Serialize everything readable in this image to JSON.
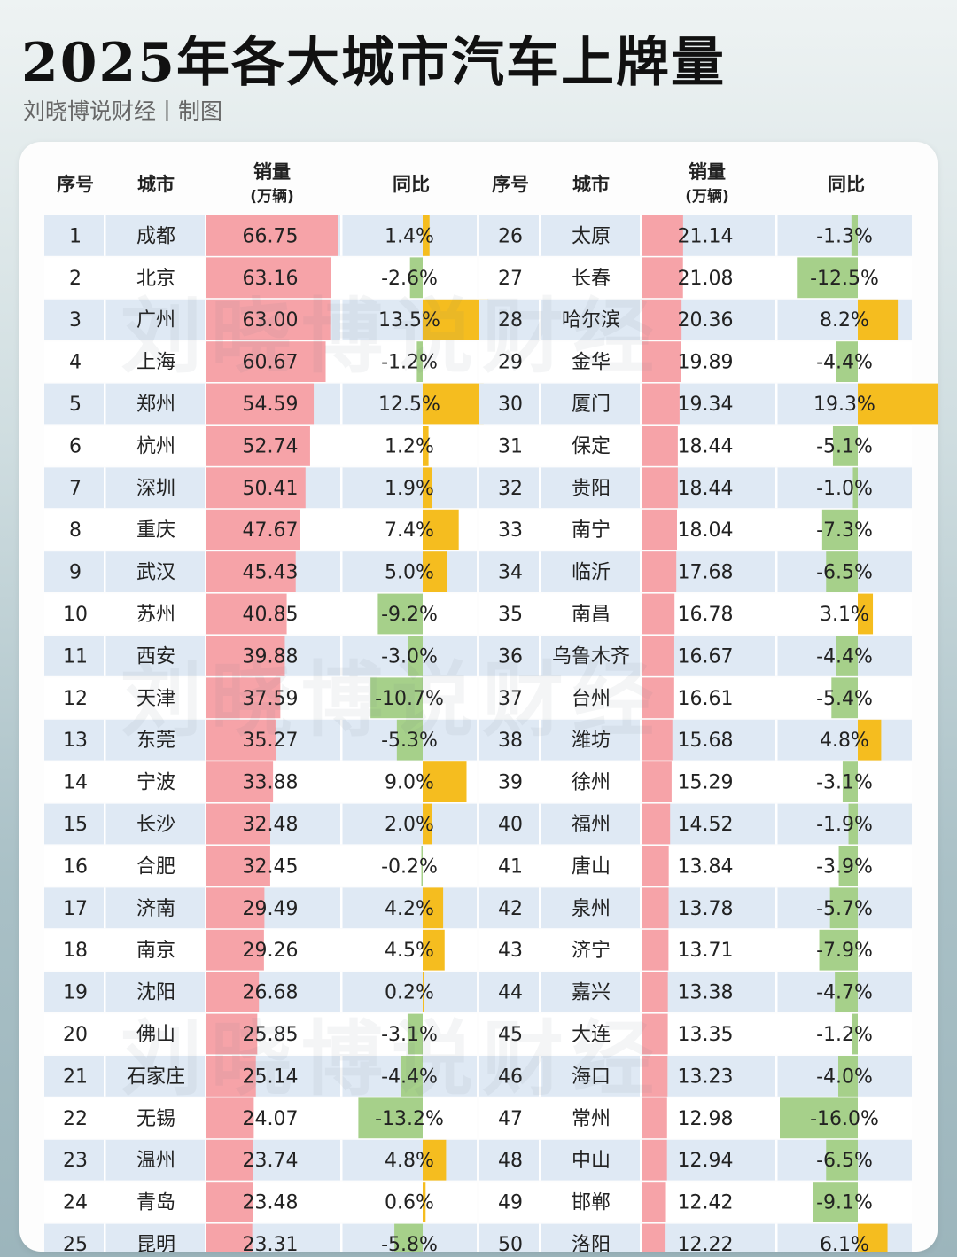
{
  "title": "2025年各大城市汽车上牌量",
  "subtitle": "刘晓博说财经丨制图",
  "watermark": "刘晓博说财经",
  "colors": {
    "sales_bar": "#f6a3a8",
    "yoy_positive": "#f5bd1f",
    "yoy_negative": "#a6d08a",
    "row_a": "#dfe9f4",
    "row_b": "#ffffff"
  },
  "headers": {
    "rank": "序号",
    "city": "城市",
    "sales": "销量",
    "sales_unit": "(万辆)",
    "yoy": "同比"
  },
  "chart_data": {
    "type": "table",
    "title": "2025年各大城市汽车上牌量",
    "columns": [
      "序号",
      "城市",
      "销量(万辆)",
      "同比"
    ],
    "rows": [
      {
        "rank": 1,
        "city": "成都",
        "sales": 66.75,
        "yoy": 1.4
      },
      {
        "rank": 2,
        "city": "北京",
        "sales": 63.16,
        "yoy": -2.6
      },
      {
        "rank": 3,
        "city": "广州",
        "sales": 63.0,
        "yoy": 13.5
      },
      {
        "rank": 4,
        "city": "上海",
        "sales": 60.67,
        "yoy": -1.2
      },
      {
        "rank": 5,
        "city": "郑州",
        "sales": 54.59,
        "yoy": 12.5
      },
      {
        "rank": 6,
        "city": "杭州",
        "sales": 52.74,
        "yoy": 1.2
      },
      {
        "rank": 7,
        "city": "深圳",
        "sales": 50.41,
        "yoy": 1.9
      },
      {
        "rank": 8,
        "city": "重庆",
        "sales": 47.67,
        "yoy": 7.4
      },
      {
        "rank": 9,
        "city": "武汉",
        "sales": 45.43,
        "yoy": 5.0
      },
      {
        "rank": 10,
        "city": "苏州",
        "sales": 40.85,
        "yoy": -9.2
      },
      {
        "rank": 11,
        "city": "西安",
        "sales": 39.88,
        "yoy": -3.0
      },
      {
        "rank": 12,
        "city": "天津",
        "sales": 37.59,
        "yoy": -10.7
      },
      {
        "rank": 13,
        "city": "东莞",
        "sales": 35.27,
        "yoy": -5.3
      },
      {
        "rank": 14,
        "city": "宁波",
        "sales": 33.88,
        "yoy": 9.0
      },
      {
        "rank": 15,
        "city": "长沙",
        "sales": 32.48,
        "yoy": 2.0
      },
      {
        "rank": 16,
        "city": "合肥",
        "sales": 32.45,
        "yoy": -0.2
      },
      {
        "rank": 17,
        "city": "济南",
        "sales": 29.49,
        "yoy": 4.2
      },
      {
        "rank": 18,
        "city": "南京",
        "sales": 29.26,
        "yoy": 4.5
      },
      {
        "rank": 19,
        "city": "沈阳",
        "sales": 26.68,
        "yoy": 0.2
      },
      {
        "rank": 20,
        "city": "佛山",
        "sales": 25.85,
        "yoy": -3.1
      },
      {
        "rank": 21,
        "city": "石家庄",
        "sales": 25.14,
        "yoy": -4.4
      },
      {
        "rank": 22,
        "city": "无锡",
        "sales": 24.07,
        "yoy": -13.2
      },
      {
        "rank": 23,
        "city": "温州",
        "sales": 23.74,
        "yoy": 4.8
      },
      {
        "rank": 24,
        "city": "青岛",
        "sales": 23.48,
        "yoy": 0.6
      },
      {
        "rank": 25,
        "city": "昆明",
        "sales": 23.31,
        "yoy": -5.8
      },
      {
        "rank": 26,
        "city": "太原",
        "sales": 21.14,
        "yoy": -1.3
      },
      {
        "rank": 27,
        "city": "长春",
        "sales": 21.08,
        "yoy": -12.5
      },
      {
        "rank": 28,
        "city": "哈尔滨",
        "sales": 20.36,
        "yoy": 8.2
      },
      {
        "rank": 29,
        "city": "金华",
        "sales": 19.89,
        "yoy": -4.4
      },
      {
        "rank": 30,
        "city": "厦门",
        "sales": 19.34,
        "yoy": 19.3
      },
      {
        "rank": 31,
        "city": "保定",
        "sales": 18.44,
        "yoy": -5.1
      },
      {
        "rank": 32,
        "city": "贵阳",
        "sales": 18.44,
        "yoy": -1.0
      },
      {
        "rank": 33,
        "city": "南宁",
        "sales": 18.04,
        "yoy": -7.3
      },
      {
        "rank": 34,
        "city": "临沂",
        "sales": 17.68,
        "yoy": -6.5
      },
      {
        "rank": 35,
        "city": "南昌",
        "sales": 16.78,
        "yoy": 3.1
      },
      {
        "rank": 36,
        "city": "乌鲁木齐",
        "sales": 16.67,
        "yoy": -4.4
      },
      {
        "rank": 37,
        "city": "台州",
        "sales": 16.61,
        "yoy": -5.4
      },
      {
        "rank": 38,
        "city": "潍坊",
        "sales": 15.68,
        "yoy": 4.8
      },
      {
        "rank": 39,
        "city": "徐州",
        "sales": 15.29,
        "yoy": -3.1
      },
      {
        "rank": 40,
        "city": "福州",
        "sales": 14.52,
        "yoy": -1.9
      },
      {
        "rank": 41,
        "city": "唐山",
        "sales": 13.84,
        "yoy": -3.9
      },
      {
        "rank": 42,
        "city": "泉州",
        "sales": 13.78,
        "yoy": -5.7
      },
      {
        "rank": 43,
        "city": "济宁",
        "sales": 13.71,
        "yoy": -7.9
      },
      {
        "rank": 44,
        "city": "嘉兴",
        "sales": 13.38,
        "yoy": -4.7
      },
      {
        "rank": 45,
        "city": "大连",
        "sales": 13.35,
        "yoy": -1.2
      },
      {
        "rank": 46,
        "city": "海口",
        "sales": 13.23,
        "yoy": -4.0
      },
      {
        "rank": 47,
        "city": "常州",
        "sales": 12.98,
        "yoy": -16.0
      },
      {
        "rank": 48,
        "city": "中山",
        "sales": 12.94,
        "yoy": -6.5
      },
      {
        "rank": 49,
        "city": "邯郸",
        "sales": 12.42,
        "yoy": -9.1
      },
      {
        "rank": 50,
        "city": "洛阳",
        "sales": 12.22,
        "yoy": 6.1
      }
    ]
  }
}
